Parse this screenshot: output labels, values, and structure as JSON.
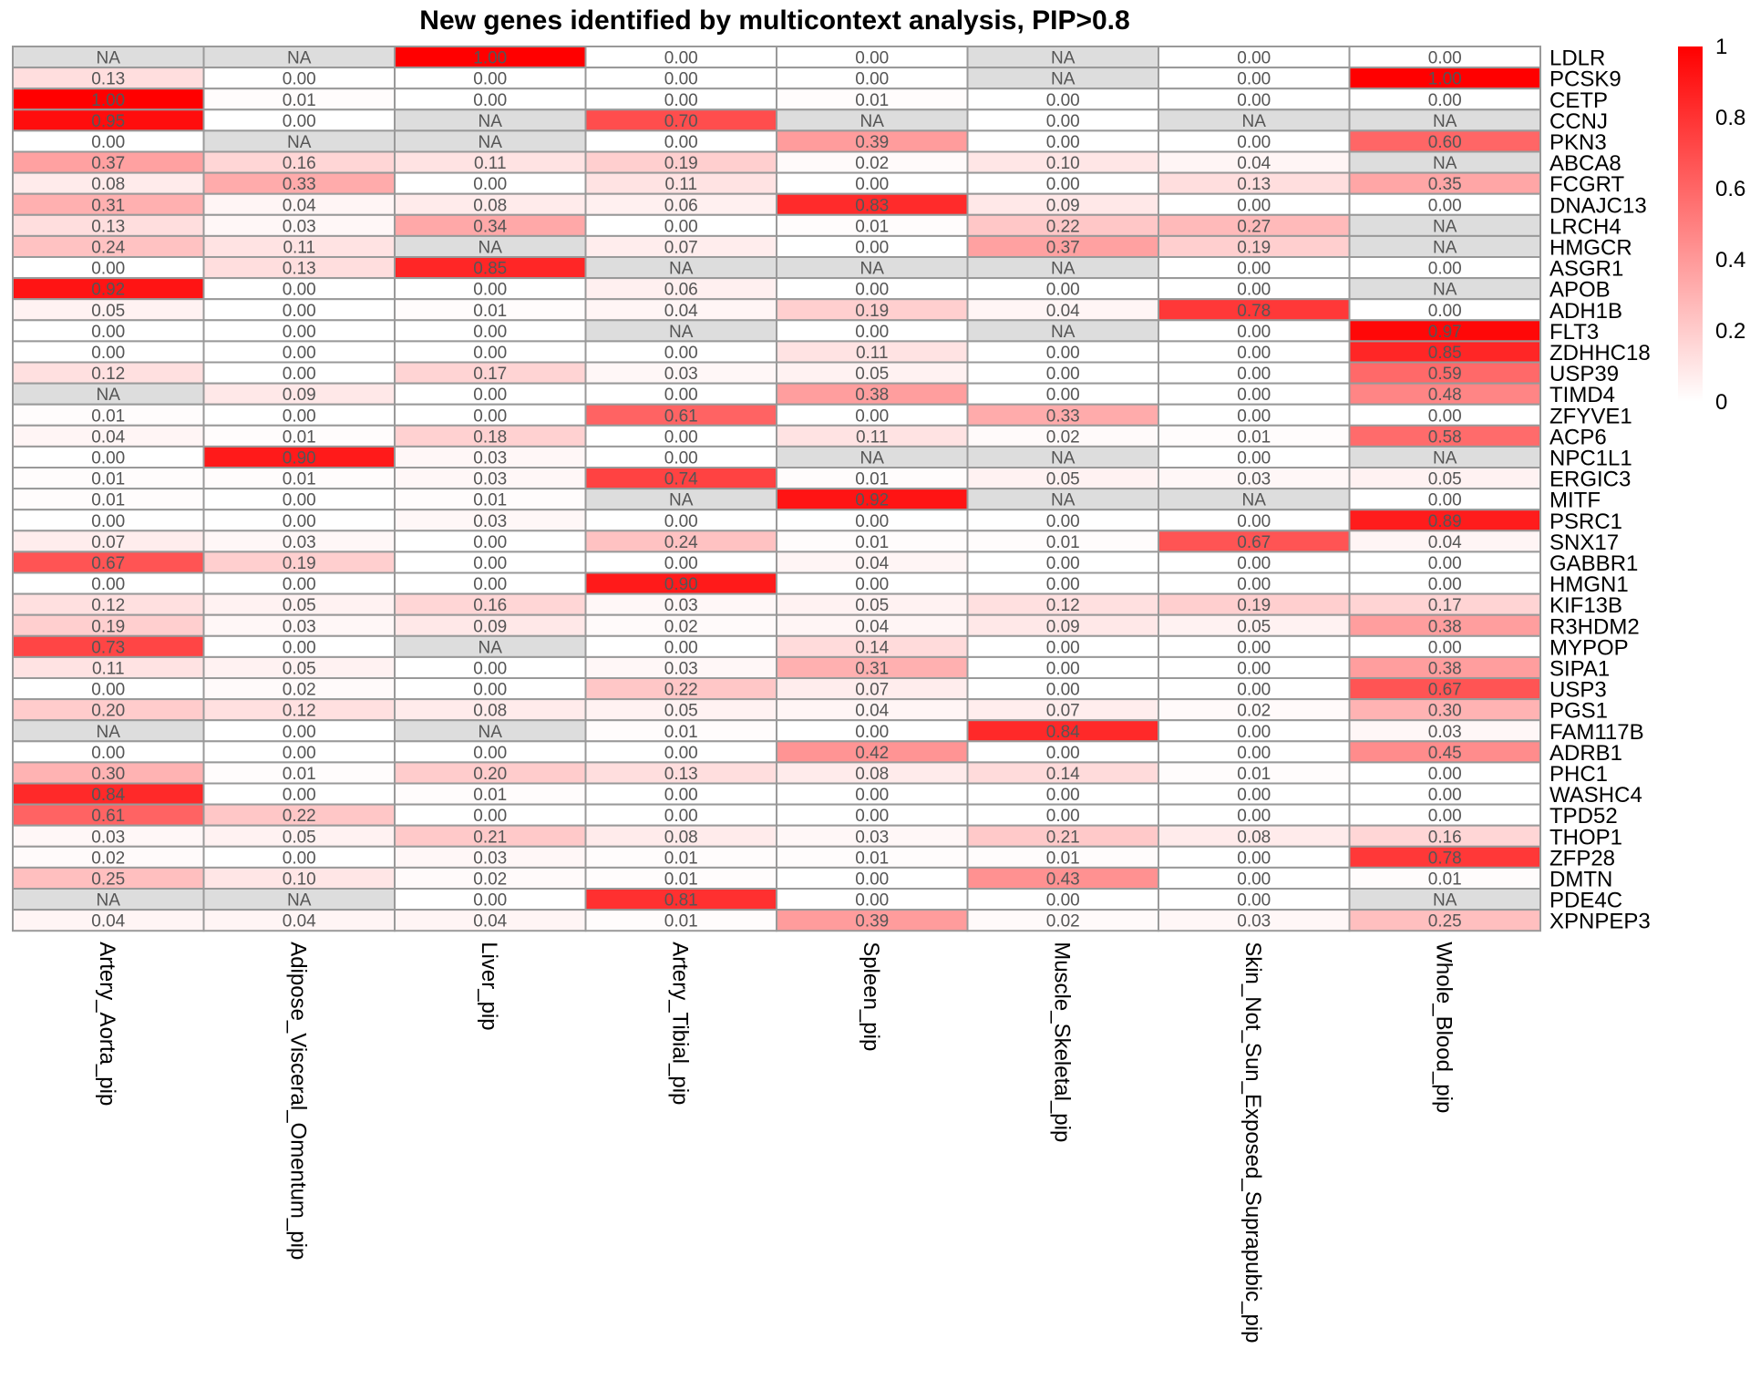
{
  "chart_data": {
    "type": "heatmap",
    "title": "New genes identified by multicontext analysis, PIP>0.8",
    "columns": [
      "Artery_Aorta_pip",
      "Adipose_Visceral_Omentum_pip",
      "Liver_pip",
      "Artery_Tibial_pip",
      "Spleen_pip",
      "Muscle_Skeletal_pip",
      "Skin_Not_Sun_Exposed_Suprapubic_pip",
      "Whole_Blood_pip"
    ],
    "rows": [
      "LDLR",
      "PCSK9",
      "CETP",
      "CCNJ",
      "PKN3",
      "ABCA8",
      "FCGRT",
      "DNAJC13",
      "LRCH4",
      "HMGCR",
      "ASGR1",
      "APOB",
      "ADH1B",
      "FLT3",
      "ZDHHC18",
      "USP39",
      "TIMD4",
      "ZFYVE1",
      "ACP6",
      "NPC1L1",
      "ERGIC3",
      "MITF",
      "PSRC1",
      "SNX17",
      "GABBR1",
      "HMGN1",
      "KIF13B",
      "R3HDM2",
      "MYPOP",
      "SIPA1",
      "USP3",
      "PGS1",
      "FAM117B",
      "ADRB1",
      "PHC1",
      "WASHC4",
      "TPD52",
      "THOP1",
      "ZFP28",
      "DMTN",
      "PDE4C",
      "XPNPEP3"
    ],
    "values": [
      [
        null,
        null,
        1.0,
        0.0,
        0.0,
        null,
        0.0,
        0.0
      ],
      [
        0.13,
        0.0,
        0.0,
        0.0,
        0.0,
        null,
        0.0,
        1.0
      ],
      [
        1.0,
        0.01,
        0.0,
        0.0,
        0.01,
        0.0,
        0.0,
        0.0
      ],
      [
        0.95,
        0.0,
        null,
        0.7,
        null,
        0.0,
        null,
        null
      ],
      [
        0.0,
        null,
        null,
        0.0,
        0.39,
        0.0,
        0.0,
        0.6
      ],
      [
        0.37,
        0.16,
        0.11,
        0.19,
        0.02,
        0.1,
        0.04,
        null
      ],
      [
        0.08,
        0.33,
        0.0,
        0.11,
        0.0,
        0.0,
        0.13,
        0.35
      ],
      [
        0.31,
        0.04,
        0.08,
        0.06,
        0.83,
        0.09,
        0.0,
        0.0
      ],
      [
        0.13,
        0.03,
        0.34,
        0.0,
        0.01,
        0.22,
        0.27,
        null
      ],
      [
        0.24,
        0.11,
        null,
        0.07,
        0.0,
        0.37,
        0.19,
        null
      ],
      [
        0.0,
        0.13,
        0.85,
        null,
        null,
        null,
        0.0,
        0.0
      ],
      [
        0.92,
        0.0,
        0.0,
        0.06,
        0.0,
        0.0,
        0.0,
        null
      ],
      [
        0.05,
        0.0,
        0.01,
        0.04,
        0.19,
        0.04,
        0.78,
        0.0
      ],
      [
        0.0,
        0.0,
        0.0,
        null,
        0.0,
        null,
        0.0,
        0.97
      ],
      [
        0.0,
        0.0,
        0.0,
        0.0,
        0.11,
        0.0,
        0.0,
        0.85
      ],
      [
        0.12,
        0.0,
        0.17,
        0.03,
        0.05,
        0.0,
        0.0,
        0.59
      ],
      [
        null,
        0.09,
        0.0,
        0.0,
        0.38,
        0.0,
        0.0,
        0.48
      ],
      [
        0.01,
        0.0,
        0.0,
        0.61,
        0.0,
        0.33,
        0.0,
        0.0
      ],
      [
        0.04,
        0.01,
        0.18,
        0.0,
        0.11,
        0.02,
        0.01,
        0.58
      ],
      [
        0.0,
        0.9,
        0.03,
        0.0,
        null,
        null,
        0.0,
        null
      ],
      [
        0.01,
        0.01,
        0.03,
        0.74,
        0.01,
        0.05,
        0.03,
        0.05
      ],
      [
        0.01,
        0.0,
        0.01,
        null,
        0.92,
        null,
        null,
        0.0
      ],
      [
        0.0,
        0.0,
        0.03,
        0.0,
        0.0,
        0.0,
        0.0,
        0.89
      ],
      [
        0.07,
        0.03,
        0.0,
        0.24,
        0.01,
        0.01,
        0.67,
        0.04
      ],
      [
        0.67,
        0.19,
        0.0,
        0.0,
        0.04,
        0.0,
        0.0,
        0.0
      ],
      [
        0.0,
        0.0,
        0.0,
        0.9,
        0.0,
        0.0,
        0.0,
        0.0
      ],
      [
        0.12,
        0.05,
        0.16,
        0.03,
        0.05,
        0.12,
        0.19,
        0.17
      ],
      [
        0.19,
        0.03,
        0.09,
        0.02,
        0.04,
        0.09,
        0.05,
        0.38
      ],
      [
        0.73,
        0.0,
        null,
        0.0,
        0.14,
        0.0,
        0.0,
        0.0
      ],
      [
        0.11,
        0.05,
        0.0,
        0.03,
        0.31,
        0.0,
        0.0,
        0.38
      ],
      [
        0.0,
        0.02,
        0.0,
        0.22,
        0.07,
        0.0,
        0.0,
        0.67
      ],
      [
        0.2,
        0.12,
        0.08,
        0.05,
        0.04,
        0.07,
        0.02,
        0.3
      ],
      [
        null,
        0.0,
        null,
        0.01,
        0.0,
        0.84,
        0.0,
        0.03
      ],
      [
        0.0,
        0.0,
        0.0,
        0.0,
        0.42,
        0.0,
        0.0,
        0.45
      ],
      [
        0.3,
        0.01,
        0.2,
        0.13,
        0.08,
        0.14,
        0.01,
        0.0
      ],
      [
        0.84,
        0.0,
        0.01,
        0.0,
        0.0,
        0.0,
        0.0,
        0.0
      ],
      [
        0.61,
        0.22,
        0.0,
        0.0,
        0.0,
        0.0,
        0.0,
        0.0
      ],
      [
        0.03,
        0.05,
        0.21,
        0.08,
        0.03,
        0.21,
        0.08,
        0.16
      ],
      [
        0.02,
        0.0,
        0.03,
        0.01,
        0.01,
        0.01,
        0.0,
        0.78
      ],
      [
        0.25,
        0.1,
        0.02,
        0.01,
        0.0,
        0.43,
        0.0,
        0.01
      ],
      [
        null,
        null,
        0.0,
        0.81,
        0.0,
        0.0,
        0.0,
        null
      ],
      [
        0.04,
        0.04,
        0.04,
        0.01,
        0.39,
        0.02,
        0.03,
        0.25
      ]
    ],
    "na_label": "NA",
    "value_range": [
      0,
      1
    ],
    "legend": {
      "ticks": [
        0,
        0.2,
        0.4,
        0.6,
        0.8,
        1
      ],
      "tick_labels": [
        "0",
        "0.2",
        "0.4",
        "0.6",
        "0.8",
        "1"
      ],
      "placement": "top-right"
    },
    "colors": {
      "low": "#ffffff",
      "high": "#ff0000",
      "na": "#dddddd",
      "grid": "#999999"
    }
  }
}
